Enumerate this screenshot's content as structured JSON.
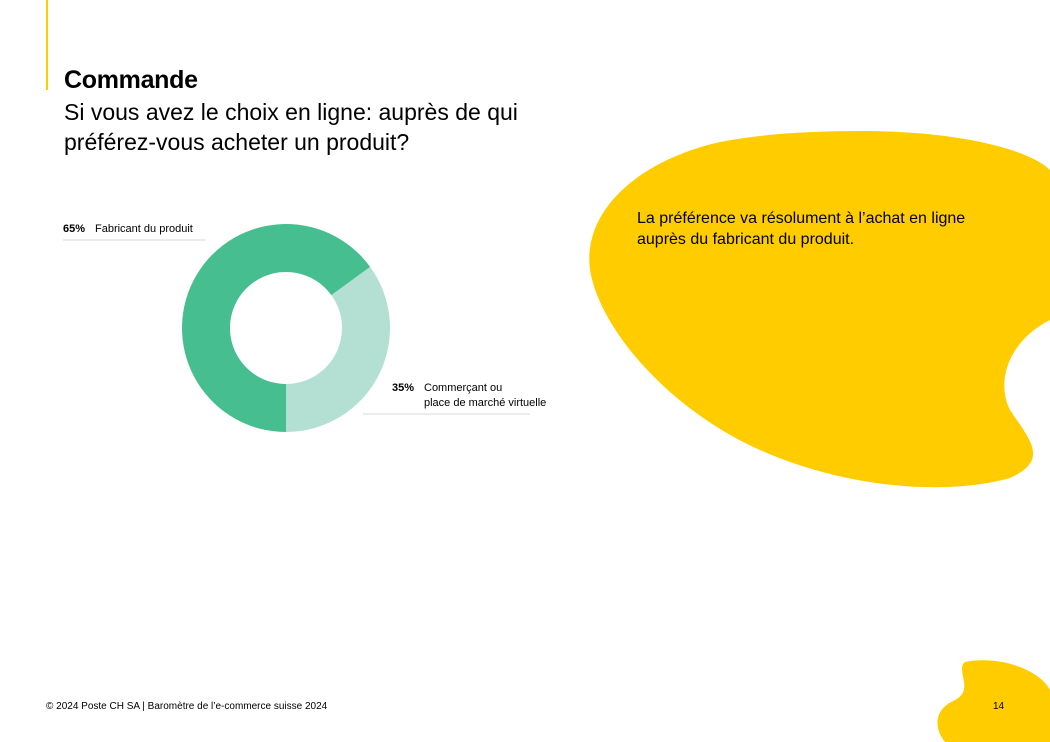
{
  "page": {
    "title": "Commande",
    "subtitle": "Si vous avez le choix en ligne: auprès de qui préférez-vous acheter un produit?",
    "callout": "La préférence va résolument à l’achat en ligne auprès du fabricant du produit.",
    "footer": "© 2024 Poste CH SA | Baromètre de l’e-commerce suisse 2024",
    "page_number": "14"
  },
  "colors": {
    "accent": "#FFCC00",
    "series_main": "#46BE8F",
    "series_light": "#B4E0D3",
    "leader_line": "#D9D9D9"
  },
  "chart_data": {
    "type": "pie",
    "subtype": "donut",
    "title": "",
    "slices": [
      {
        "label": "Commerçant ou place de marché virtuelle",
        "label_lines": [
          "Commerçant ou",
          "place de marché virtuelle"
        ],
        "value": 35,
        "value_label": "35%",
        "color": "#B4E0D3"
      },
      {
        "label": "Fabricant du produit",
        "label_lines": [
          "Fabricant du produit"
        ],
        "value": 65,
        "value_label": "65%",
        "color": "#46BE8F"
      }
    ]
  }
}
